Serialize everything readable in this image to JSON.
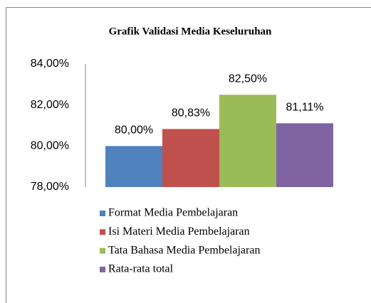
{
  "chart_data": {
    "type": "bar",
    "title": "Grafik Validasi Media Keseluruhan",
    "categories": [
      null
    ],
    "series": [
      {
        "name": "Format Media Pembelajaran",
        "color": "#4f81bd",
        "values": [
          80.0
        ],
        "value_labels": [
          "80,00%"
        ]
      },
      {
        "name": "Isi Materi Media Pembelajaran",
        "color": "#c0504d",
        "values": [
          80.83
        ],
        "value_labels": [
          "80,83%"
        ]
      },
      {
        "name": "Tata Bahasa Media Pembelajaran",
        "color": "#9bbb59",
        "values": [
          82.5
        ],
        "value_labels": [
          "82,50%"
        ]
      },
      {
        "name": "Rata-rata total",
        "color": "#8064a2",
        "values": [
          81.11
        ],
        "value_labels": [
          "81,11%"
        ]
      }
    ],
    "ylim": [
      78,
      84
    ],
    "yticks": [
      {
        "value": 78,
        "label": "78,00%"
      },
      {
        "value": 80,
        "label": "80,00%"
      },
      {
        "value": 82,
        "label": "82,00%"
      },
      {
        "value": 84,
        "label": "84,00%"
      }
    ],
    "grid": false,
    "legend": "bottom"
  }
}
